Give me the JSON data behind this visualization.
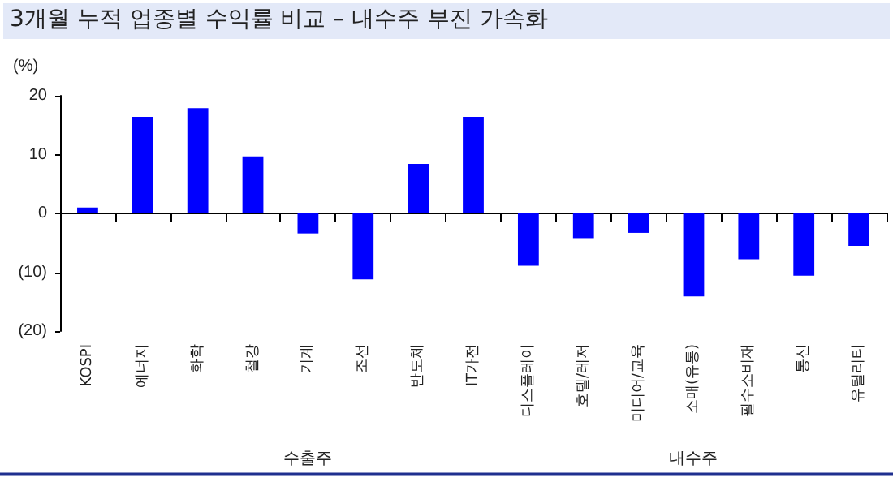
{
  "chart_data": {
    "type": "bar",
    "title": "3개월 누적 업종별 수익률 비교 – 내수주 부진 가속화",
    "ylabel": "(%)",
    "categories": [
      "KOSPI",
      "에너지",
      "화학",
      "철강",
      "기계",
      "조선",
      "반도체",
      "IT가전",
      "디스플레이",
      "호텔/레저",
      "미디어/교육",
      "소매(유통)",
      "필수소비재",
      "통신",
      "유틸리티"
    ],
    "values": [
      1,
      16.4,
      17.9,
      9.7,
      -3.4,
      -11.2,
      8.4,
      16.4,
      -8.9,
      -4.2,
      -3.3,
      -14.1,
      -7.8,
      -10.6,
      -5.5
    ],
    "color": "#0000ff",
    "ylim": [
      -20,
      20
    ],
    "yticks": [
      {
        "value": -20,
        "label": "(20)"
      },
      {
        "value": -10,
        "label": "(10)"
      },
      0,
      10,
      20
    ],
    "annotations": [
      "수출주",
      "내수주"
    ]
  }
}
